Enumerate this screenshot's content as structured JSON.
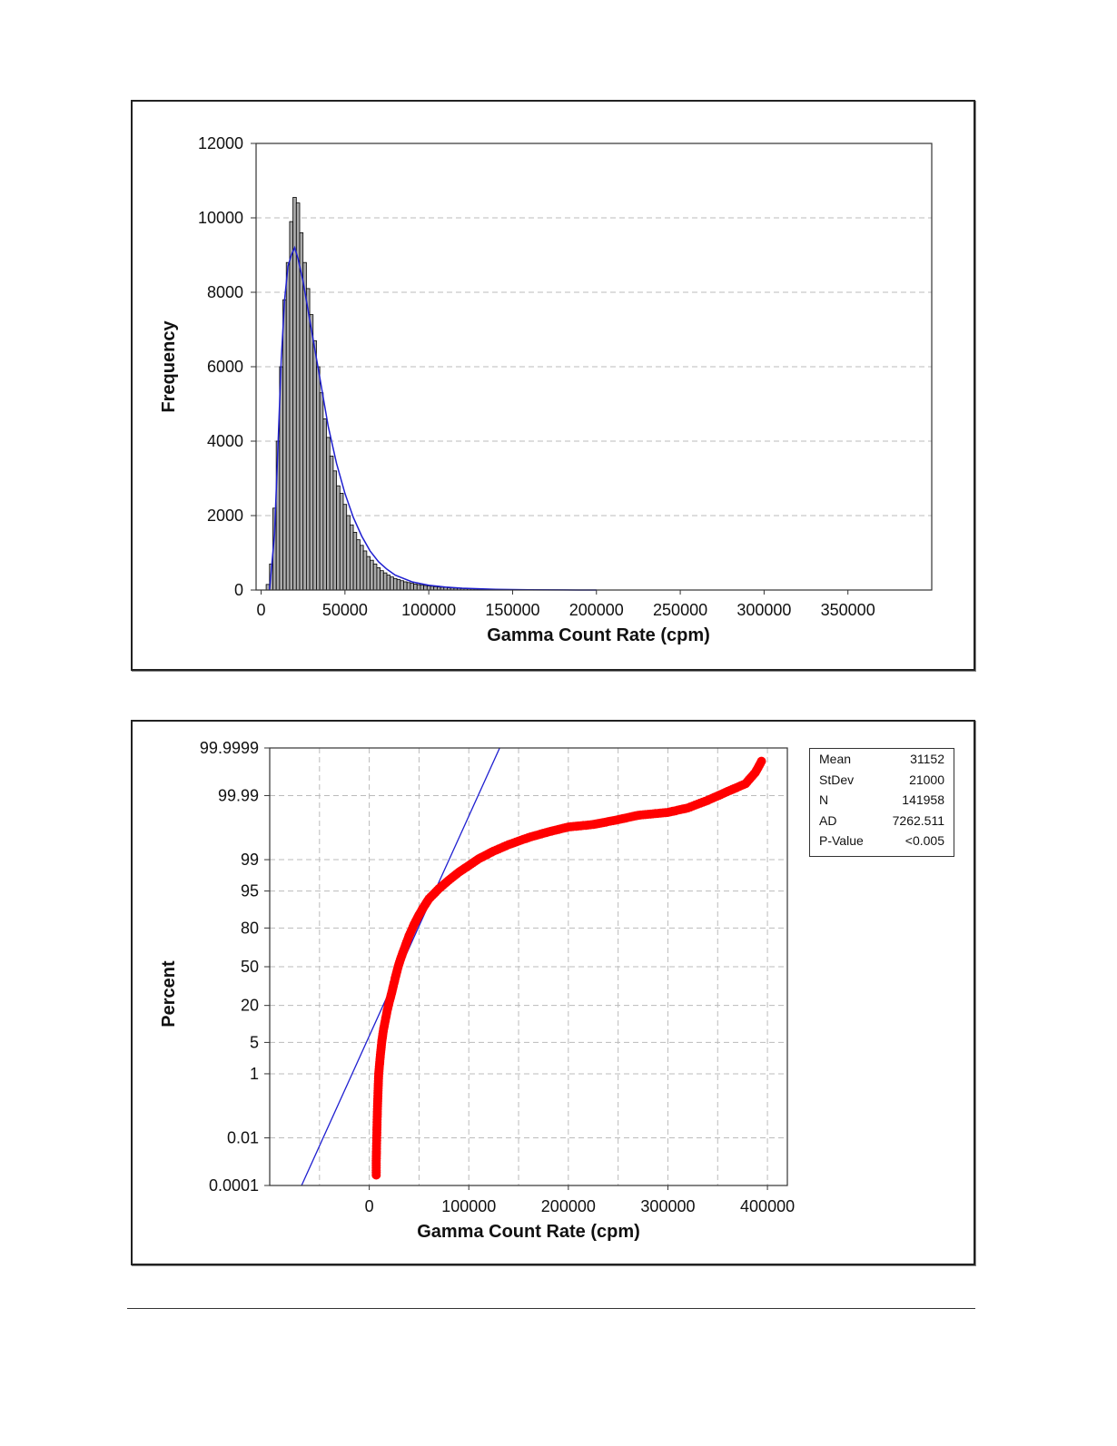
{
  "chart_data": [
    {
      "type": "bar",
      "subtype": "histogram",
      "title": "",
      "xlabel": "Gamma Count Rate (cpm)",
      "ylabel": "Frequency",
      "xlim": [
        -3000,
        400000
      ],
      "ylim": [
        0,
        12000
      ],
      "x_ticks": [
        0,
        50000,
        100000,
        150000,
        200000,
        250000,
        300000,
        350000
      ],
      "y_ticks": [
        0,
        2000,
        4000,
        6000,
        8000,
        10000,
        12000
      ],
      "grid": "horizontal dashed",
      "bin_width": 2000,
      "bins": [
        {
          "x": 4000,
          "y": 150
        },
        {
          "x": 6000,
          "y": 700
        },
        {
          "x": 8000,
          "y": 2200
        },
        {
          "x": 10000,
          "y": 4000
        },
        {
          "x": 12000,
          "y": 6000
        },
        {
          "x": 14000,
          "y": 7800
        },
        {
          "x": 16000,
          "y": 8800
        },
        {
          "x": 18000,
          "y": 9900
        },
        {
          "x": 20000,
          "y": 10550
        },
        {
          "x": 22000,
          "y": 10400
        },
        {
          "x": 24000,
          "y": 9600
        },
        {
          "x": 26000,
          "y": 8800
        },
        {
          "x": 28000,
          "y": 8100
        },
        {
          "x": 30000,
          "y": 7400
        },
        {
          "x": 32000,
          "y": 6700
        },
        {
          "x": 34000,
          "y": 6000
        },
        {
          "x": 36000,
          "y": 5300
        },
        {
          "x": 38000,
          "y": 4600
        },
        {
          "x": 40000,
          "y": 4100
        },
        {
          "x": 42000,
          "y": 3600
        },
        {
          "x": 44000,
          "y": 3200
        },
        {
          "x": 46000,
          "y": 2800
        },
        {
          "x": 48000,
          "y": 2600
        },
        {
          "x": 50000,
          "y": 2300
        },
        {
          "x": 52000,
          "y": 2000
        },
        {
          "x": 54000,
          "y": 1750
        },
        {
          "x": 56000,
          "y": 1550
        },
        {
          "x": 58000,
          "y": 1350
        },
        {
          "x": 60000,
          "y": 1200
        },
        {
          "x": 62000,
          "y": 1050
        },
        {
          "x": 64000,
          "y": 900
        },
        {
          "x": 66000,
          "y": 800
        },
        {
          "x": 68000,
          "y": 700
        },
        {
          "x": 70000,
          "y": 600
        },
        {
          "x": 72000,
          "y": 520
        },
        {
          "x": 74000,
          "y": 460
        },
        {
          "x": 76000,
          "y": 400
        },
        {
          "x": 78000,
          "y": 350
        },
        {
          "x": 80000,
          "y": 310
        },
        {
          "x": 82000,
          "y": 280
        },
        {
          "x": 84000,
          "y": 250
        },
        {
          "x": 86000,
          "y": 220
        },
        {
          "x": 88000,
          "y": 200
        },
        {
          "x": 90000,
          "y": 180
        },
        {
          "x": 92000,
          "y": 160
        },
        {
          "x": 94000,
          "y": 145
        },
        {
          "x": 96000,
          "y": 130
        },
        {
          "x": 98000,
          "y": 120
        },
        {
          "x": 100000,
          "y": 110
        },
        {
          "x": 102000,
          "y": 100
        },
        {
          "x": 104000,
          "y": 90
        },
        {
          "x": 106000,
          "y": 80
        },
        {
          "x": 108000,
          "y": 75
        },
        {
          "x": 110000,
          "y": 70
        },
        {
          "x": 112000,
          "y": 60
        },
        {
          "x": 114000,
          "y": 55
        },
        {
          "x": 116000,
          "y": 50
        },
        {
          "x": 118000,
          "y": 45
        },
        {
          "x": 120000,
          "y": 40
        },
        {
          "x": 122000,
          "y": 35
        },
        {
          "x": 124000,
          "y": 32
        },
        {
          "x": 126000,
          "y": 30
        },
        {
          "x": 128000,
          "y": 28
        },
        {
          "x": 130000,
          "y": 26
        },
        {
          "x": 132000,
          "y": 24
        },
        {
          "x": 134000,
          "y": 22
        },
        {
          "x": 136000,
          "y": 20
        },
        {
          "x": 138000,
          "y": 18
        },
        {
          "x": 140000,
          "y": 16
        },
        {
          "x": 142000,
          "y": 14
        },
        {
          "x": 144000,
          "y": 12
        },
        {
          "x": 146000,
          "y": 11
        },
        {
          "x": 148000,
          "y": 10
        },
        {
          "x": 150000,
          "y": 9
        },
        {
          "x": 152000,
          "y": 8
        },
        {
          "x": 154000,
          "y": 7
        },
        {
          "x": 156000,
          "y": 6
        },
        {
          "x": 158000,
          "y": 5
        },
        {
          "x": 160000,
          "y": 4
        }
      ],
      "fit_curve": [
        {
          "x": 5000,
          "y": 0
        },
        {
          "x": 8000,
          "y": 1500
        },
        {
          "x": 10000,
          "y": 3800
        },
        {
          "x": 12000,
          "y": 6200
        },
        {
          "x": 14000,
          "y": 7800
        },
        {
          "x": 16000,
          "y": 8700
        },
        {
          "x": 18000,
          "y": 9000
        },
        {
          "x": 20000,
          "y": 9200
        },
        {
          "x": 22000,
          "y": 8900
        },
        {
          "x": 25000,
          "y": 8300
        },
        {
          "x": 30000,
          "y": 7000
        },
        {
          "x": 35000,
          "y": 5700
        },
        {
          "x": 40000,
          "y": 4400
        },
        {
          "x": 45000,
          "y": 3400
        },
        {
          "x": 50000,
          "y": 2600
        },
        {
          "x": 55000,
          "y": 1950
        },
        {
          "x": 60000,
          "y": 1450
        },
        {
          "x": 65000,
          "y": 1050
        },
        {
          "x": 70000,
          "y": 760
        },
        {
          "x": 75000,
          "y": 560
        },
        {
          "x": 80000,
          "y": 400
        },
        {
          "x": 90000,
          "y": 220
        },
        {
          "x": 100000,
          "y": 130
        },
        {
          "x": 110000,
          "y": 80
        },
        {
          "x": 120000,
          "y": 50
        },
        {
          "x": 140000,
          "y": 20
        },
        {
          "x": 160000,
          "y": 8
        },
        {
          "x": 180000,
          "y": 3
        },
        {
          "x": 200000,
          "y": 0
        }
      ],
      "colors": {
        "bar_fill": "#a9a9a9",
        "bar_edge": "#000000",
        "fit_line": "#1f1fd0",
        "grid": "#bbbbbb"
      }
    },
    {
      "type": "scatter",
      "subtype": "normal probability plot",
      "title": "",
      "xlabel": "Gamma Count Rate (cpm)",
      "ylabel": "Percent",
      "xlim": [
        -100000,
        420000
      ],
      "y_scale": "normal probability",
      "x_ticks": [
        0,
        100000,
        200000,
        300000,
        400000
      ],
      "y_ticks": [
        0.0001,
        0.01,
        1,
        5,
        20,
        50,
        80,
        95,
        99,
        99.99,
        99.9999
      ],
      "y_tick_labels": [
        "0.0001",
        "0.01",
        "1",
        "5",
        "20",
        "50",
        "80",
        "95",
        "99",
        "99.99",
        "99.9999"
      ],
      "grid": "both dashed",
      "legend": {
        "placement": "right",
        "rows": [
          {
            "label": "Mean",
            "value": "31152"
          },
          {
            "label": "StDev",
            "value": "21000"
          },
          {
            "label": "N",
            "value": "141958"
          },
          {
            "label": "AD",
            "value": "7262.511"
          },
          {
            "label": "P-Value",
            "value": "<0.005"
          }
        ]
      },
      "fit_line": [
        {
          "x": -68000,
          "y": 0.0001
        },
        {
          "x": 131000,
          "y": 99.9999
        }
      ],
      "points": [
        {
          "x": 7000,
          "y": 0.0003
        },
        {
          "x": 7000,
          "y": 0.001
        },
        {
          "x": 7200,
          "y": 0.003
        },
        {
          "x": 7500,
          "y": 0.01
        },
        {
          "x": 7800,
          "y": 0.03
        },
        {
          "x": 8200,
          "y": 0.1
        },
        {
          "x": 8700,
          "y": 0.3
        },
        {
          "x": 9500,
          "y": 1
        },
        {
          "x": 11000,
          "y": 2.5
        },
        {
          "x": 12500,
          "y": 5
        },
        {
          "x": 14000,
          "y": 8
        },
        {
          "x": 16000,
          "y": 12
        },
        {
          "x": 18000,
          "y": 17
        },
        {
          "x": 20000,
          "y": 22
        },
        {
          "x": 23000,
          "y": 30
        },
        {
          "x": 26000,
          "y": 40
        },
        {
          "x": 29000,
          "y": 50
        },
        {
          "x": 32000,
          "y": 58
        },
        {
          "x": 36000,
          "y": 67
        },
        {
          "x": 40000,
          "y": 75
        },
        {
          "x": 45000,
          "y": 82
        },
        {
          "x": 50000,
          "y": 87
        },
        {
          "x": 55000,
          "y": 90.5
        },
        {
          "x": 60000,
          "y": 93
        },
        {
          "x": 70000,
          "y": 95.5
        },
        {
          "x": 80000,
          "y": 97
        },
        {
          "x": 90000,
          "y": 98
        },
        {
          "x": 100000,
          "y": 98.6
        },
        {
          "x": 110000,
          "y": 99.05
        },
        {
          "x": 125000,
          "y": 99.4
        },
        {
          "x": 140000,
          "y": 99.6
        },
        {
          "x": 160000,
          "y": 99.75
        },
        {
          "x": 180000,
          "y": 99.83
        },
        {
          "x": 200000,
          "y": 99.88
        },
        {
          "x": 225000,
          "y": 99.9
        },
        {
          "x": 250000,
          "y": 99.93
        },
        {
          "x": 270000,
          "y": 99.95
        },
        {
          "x": 300000,
          "y": 99.96
        },
        {
          "x": 320000,
          "y": 99.972
        },
        {
          "x": 340000,
          "y": 99.985
        },
        {
          "x": 360000,
          "y": 99.993
        },
        {
          "x": 378000,
          "y": 99.9965
        },
        {
          "x": 388000,
          "y": 99.9988
        },
        {
          "x": 394000,
          "y": 99.9996
        }
      ],
      "colors": {
        "points": "#ff0000",
        "fit_line": "#1f1fd0",
        "grid": "#bbbbbb"
      }
    }
  ]
}
